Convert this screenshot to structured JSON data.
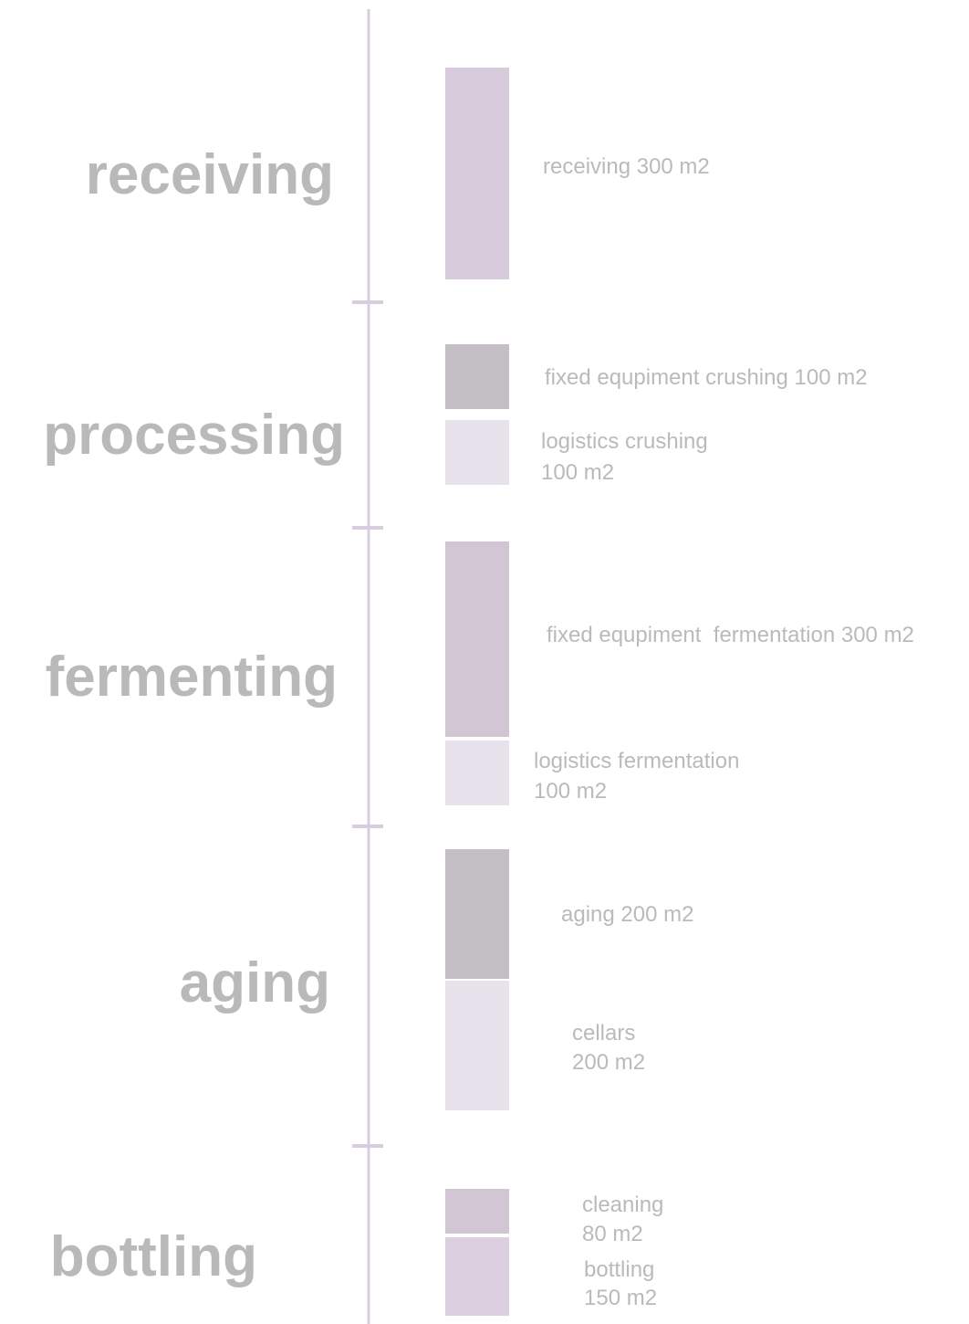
{
  "stages": [
    {
      "label": "receiving",
      "blocks": [
        {
          "lines": [
            "receiving 300 m2"
          ]
        }
      ]
    },
    {
      "label": "processing",
      "blocks": [
        {
          "lines": [
            "fixed equpiment crushing 100 m2"
          ]
        },
        {
          "lines": [
            "logistics crushing",
            "100 m2"
          ]
        }
      ]
    },
    {
      "label": "fermenting",
      "blocks": [
        {
          "lines": [
            "fixed equpiment  fermentation 300 m2"
          ]
        },
        {
          "lines": [
            "logistics fermentation",
            "100 m2"
          ]
        }
      ]
    },
    {
      "label": "aging",
      "blocks": [
        {
          "lines": [
            "aging 200 m2"
          ]
        },
        {
          "lines": [
            "cellars",
            "200 m2"
          ]
        }
      ]
    },
    {
      "label": "bottling",
      "blocks": [
        {
          "lines": [
            "cleaning",
            "80 m2"
          ]
        },
        {
          "lines": [
            "bottling",
            "150 m2"
          ]
        }
      ]
    }
  ]
}
